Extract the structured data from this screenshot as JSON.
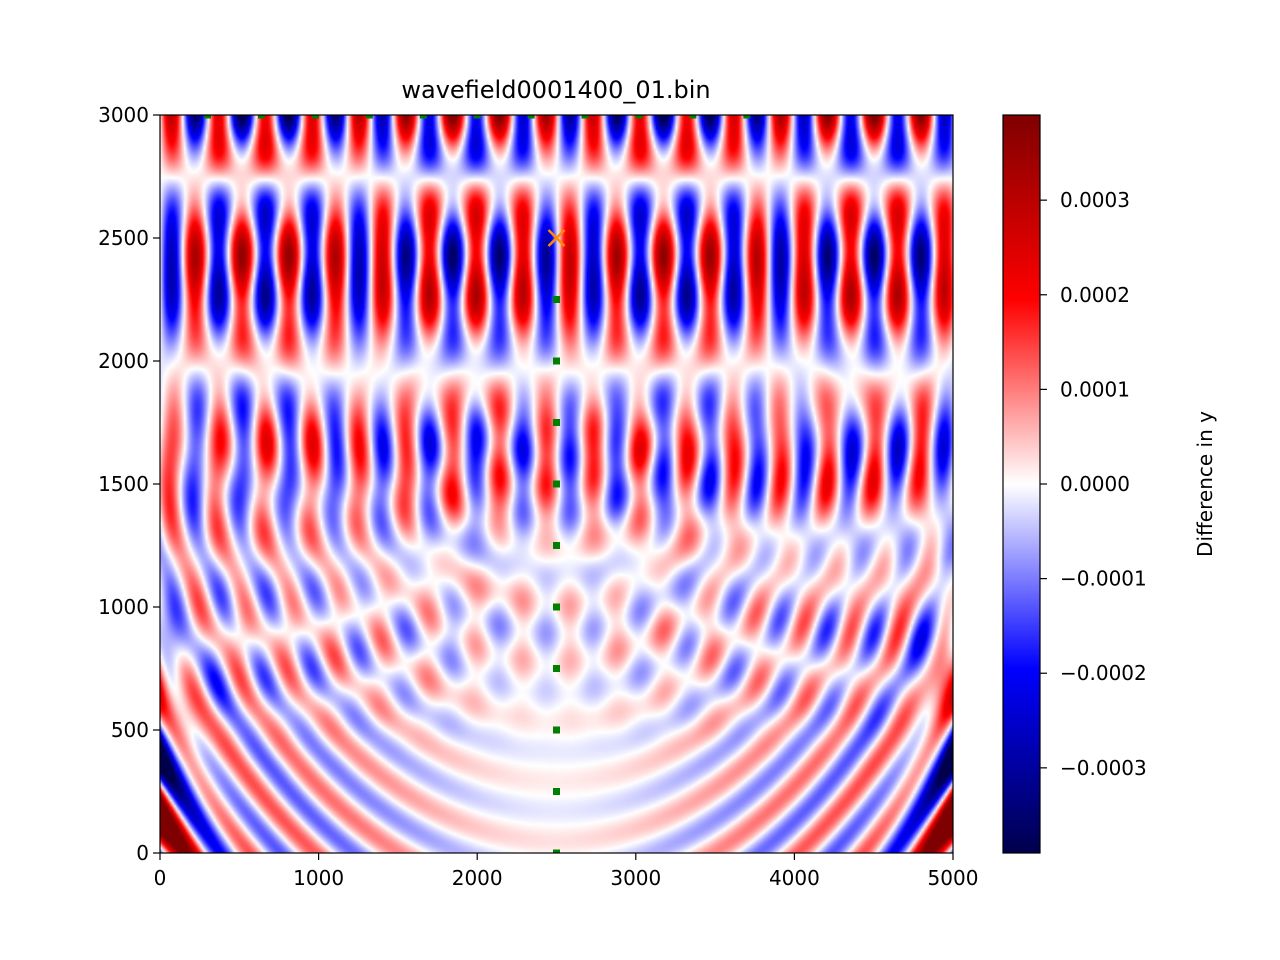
{
  "chart_data": {
    "type": "heatmap",
    "title": "wavefield0001400_01.bin",
    "xlabel": "",
    "ylabel": "",
    "xlim": [
      0,
      5000
    ],
    "ylim": [
      0,
      3000
    ],
    "x_ticks": [
      0,
      1000,
      2000,
      3000,
      4000,
      5000
    ],
    "y_ticks": [
      0,
      500,
      1000,
      1500,
      2000,
      2500,
      3000
    ],
    "colormap": "seismic",
    "colorbar": {
      "label": "Difference in y",
      "range": [
        -0.00039,
        0.00039
      ],
      "ticks": [
        {
          "value": 0.0003,
          "label": "0.0003"
        },
        {
          "value": 0.0002,
          "label": "0.0002"
        },
        {
          "value": 0.0001,
          "label": "0.0001"
        },
        {
          "value": 0.0,
          "label": "0.0000"
        },
        {
          "value": -0.0001,
          "label": "−0.0001"
        },
        {
          "value": -0.0002,
          "label": "−0.0002"
        },
        {
          "value": -0.0003,
          "label": "−0.0003"
        }
      ]
    },
    "source": {
      "x": 2500,
      "y": 2500,
      "marker": "x",
      "color": "#ff8c00"
    },
    "receivers_vertical": {
      "x": 2500,
      "y": [
        0,
        250,
        500,
        750,
        1000,
        1250,
        1500,
        1750,
        2000,
        2250
      ],
      "color": "#008000"
    },
    "receivers_surface": {
      "y": 3000,
      "x": [
        300,
        640,
        980,
        1320,
        1660,
        2000,
        2340,
        2680,
        3020,
        3360,
        3700
      ],
      "color": "#008000"
    },
    "grid": false
  }
}
